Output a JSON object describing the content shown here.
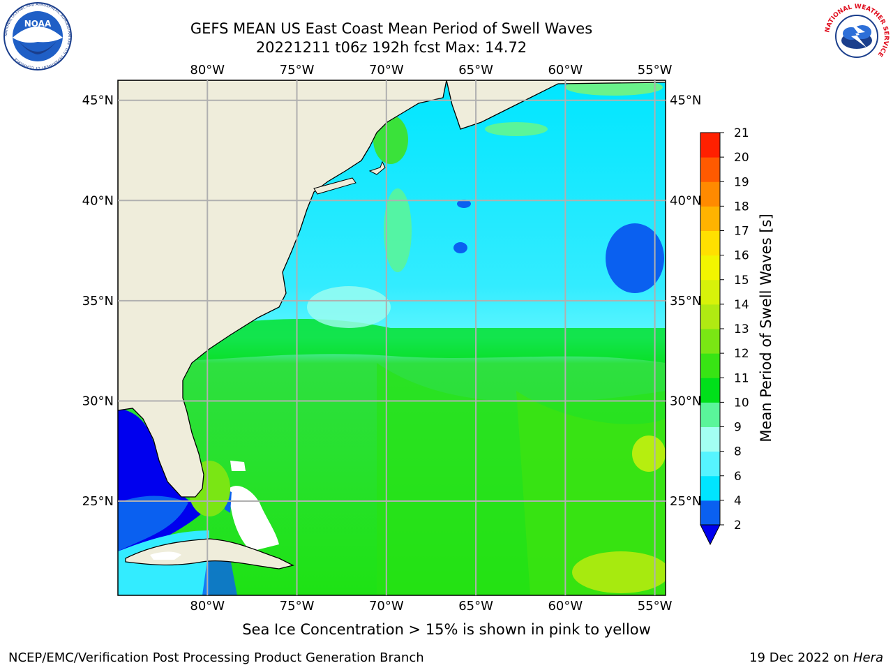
{
  "header": {
    "title_line1": "GEFS MEAN US East Coast Mean Period of Swell Waves",
    "title_line2": "20221211 t06z 192h fcst   Max: 14.72"
  },
  "map": {
    "lon_labels": [
      "80°W",
      "75°W",
      "70°W",
      "65°W",
      "60°W",
      "55°W"
    ],
    "lon_values": [
      -80,
      -75,
      -70,
      -65,
      -60,
      -55
    ],
    "lat_labels": [
      "45°N",
      "40°N",
      "35°N",
      "30°N",
      "25°N"
    ],
    "lat_values": [
      45,
      40,
      35,
      30,
      25
    ],
    "extent": {
      "lon_min": -85,
      "lon_max": -54.4,
      "lat_min": 20.3,
      "lat_max": 46
    },
    "land_color": "#efeddb",
    "grid_color": "#b0b0b0"
  },
  "colorbar": {
    "label": "Mean Period of Swell Waves [s]",
    "ticks": [
      "2",
      "4",
      "6",
      "8",
      "9",
      "10",
      "11",
      "12",
      "13",
      "14",
      "15",
      "16",
      "17",
      "18",
      "19",
      "20",
      "21"
    ],
    "colors": [
      "#0a60f0",
      "#00e5ff",
      "#56f4ff",
      "#a3fff2",
      "#5af59a",
      "#00e01a",
      "#38e414",
      "#7ae614",
      "#b0ea12",
      "#d7f20a",
      "#f2f500",
      "#ffe000",
      "#ffb300",
      "#ff8a00",
      "#ff5a00",
      "#ff2000"
    ],
    "extend_color": "#0000ee"
  },
  "footer": {
    "ice_note": "Sea Ice Concentration > 15% is shown in pink to yellow",
    "left": "NCEP/EMC/Verification Post Processing Product Generation Branch",
    "date": "19 Dec 2022 on ",
    "machine": "Hera"
  },
  "logos": {
    "noaa": "noaa-logo",
    "nws": "nws-logo",
    "noaa_text": "NOAA",
    "noaa_ring": "NATIONAL OCEANIC AND ATMOSPHERIC ADMINISTRATION · U.S. DEPARTMENT OF COMMERCE",
    "nws_ring": "NATIONAL WEATHER SERVICE"
  }
}
